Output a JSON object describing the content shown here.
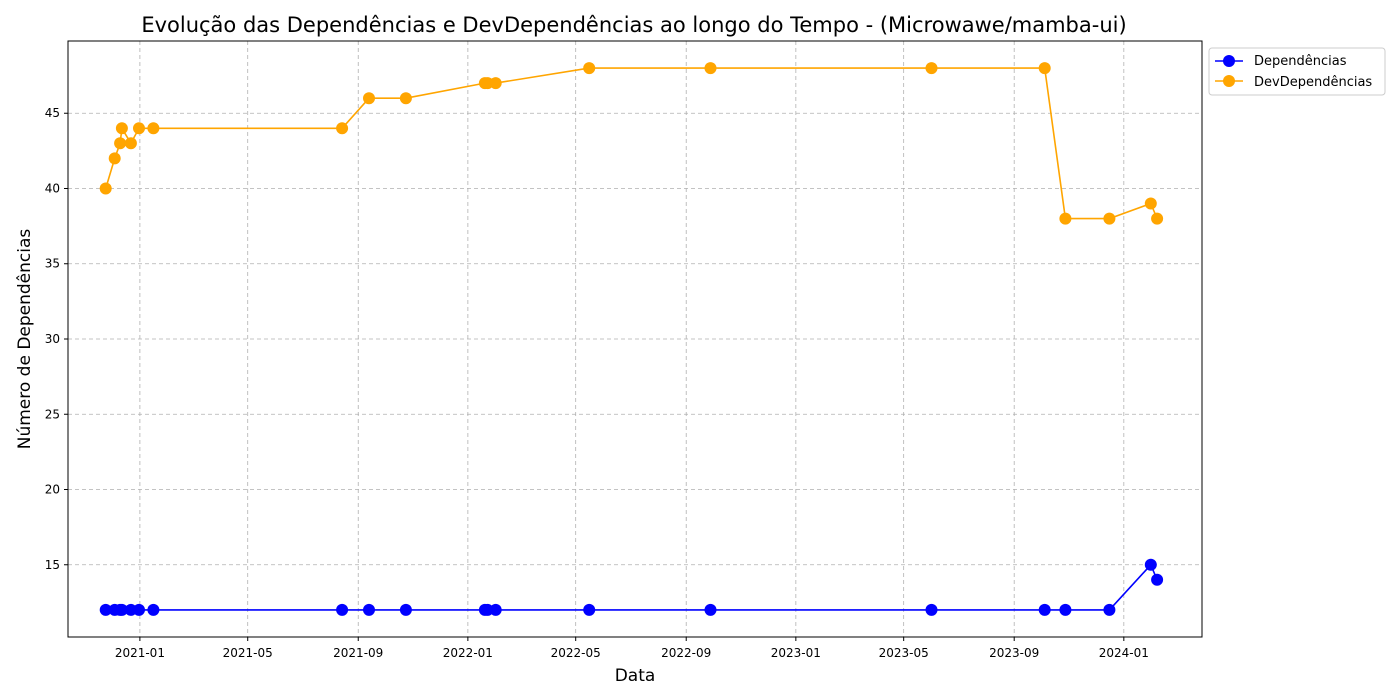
{
  "chart_data": {
    "type": "line",
    "title": "Evolução das Dependências e DevDependências ao longo do Tempo - (Microwawe/mamba-ui)",
    "xlabel": "Data",
    "ylabel": "Número de Dependências",
    "x_ticks": [
      "2021-01",
      "2021-05",
      "2021-09",
      "2022-01",
      "2022-05",
      "2022-09",
      "2023-01",
      "2023-05",
      "2023-09",
      "2024-01"
    ],
    "y_ticks": [
      15,
      20,
      25,
      30,
      35,
      40,
      45
    ],
    "xlim": [
      "2020-10-13",
      "2024-03-28"
    ],
    "ylim": [
      10.2,
      49.8
    ],
    "grid": true,
    "legend_position": "outside-upper-right",
    "x": [
      "2020-11-24",
      "2020-12-04",
      "2020-12-10",
      "2020-12-12",
      "2020-12-22",
      "2020-12-31",
      "2021-01-16",
      "2021-08-14",
      "2021-09-13",
      "2021-10-24",
      "2022-01-20",
      "2022-01-23",
      "2022-02-01",
      "2022-05-16",
      "2022-09-28",
      "2023-06-01",
      "2023-10-05",
      "2023-10-28",
      "2023-12-16",
      "2024-01-31",
      "2024-02-07"
    ],
    "series": [
      {
        "name": "Dependências",
        "color": "#0000ff",
        "values": [
          12,
          12,
          12,
          12,
          12,
          12,
          12,
          12,
          12,
          12,
          12,
          12,
          12,
          12,
          12,
          12,
          12,
          12,
          12,
          15,
          14
        ]
      },
      {
        "name": "DevDependências",
        "color": "#ffa500",
        "values": [
          40,
          42,
          43,
          44,
          43,
          44,
          44,
          44,
          46,
          46,
          47,
          47,
          47,
          48,
          48,
          48,
          48,
          38,
          38,
          39,
          38
        ]
      }
    ]
  }
}
